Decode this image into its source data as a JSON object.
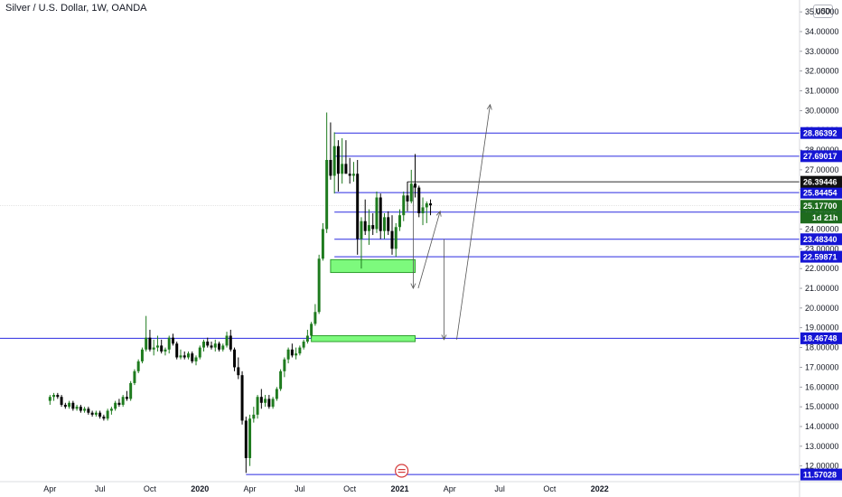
{
  "header": {
    "title": "Silver / U.S. Dollar, 1W, OANDA",
    "currency": "USD"
  },
  "colors": {
    "up": "#1e7b1e",
    "down": "#000000",
    "hline": "#2a2ae0",
    "zone_fill": "#7dfa7d",
    "zone_border": "#2e9e2e",
    "current_badge": "#111111",
    "price_badge": "#1e6b1e",
    "level_badge": "#1515d4"
  },
  "chart_data": {
    "type": "candlestick",
    "title": "Silver / U.S. Dollar, 1W, OANDA",
    "y_unit": "USD",
    "ylim": [
      11.3,
      35.6
    ],
    "y_ticks": [
      "12.00000",
      "13.00000",
      "14.00000",
      "15.00000",
      "16.00000",
      "17.00000",
      "18.00000",
      "19.00000",
      "20.00000",
      "21.00000",
      "22.00000",
      "23.00000",
      "24.00000",
      "25.00000",
      "26.00000",
      "27.00000",
      "28.00000",
      "29.00000",
      "30.00000",
      "31.00000",
      "32.00000",
      "33.00000",
      "34.00000",
      "35.00000"
    ],
    "x_ticks": [
      "Apr",
      "Jul",
      "Oct",
      "2020",
      "Apr",
      "Jul",
      "Oct",
      "2021",
      "Apr",
      "Jul",
      "Oct",
      "2022"
    ],
    "x_range_weeks": [
      -13,
      195
    ],
    "x_tick_weeks": [
      0,
      13,
      26,
      39,
      52,
      65,
      78,
      91,
      104,
      117,
      130,
      143
    ],
    "candles": [
      [
        15.3,
        15.6,
        15.1,
        15.5
      ],
      [
        15.5,
        15.7,
        15.3,
        15.6
      ],
      [
        15.6,
        15.7,
        15.4,
        15.5
      ],
      [
        15.5,
        15.6,
        15.0,
        15.1
      ],
      [
        15.1,
        15.2,
        14.9,
        15.0
      ],
      [
        15.0,
        15.3,
        14.9,
        15.2
      ],
      [
        15.2,
        15.3,
        14.8,
        14.9
      ],
      [
        14.9,
        15.1,
        14.8,
        15.0
      ],
      [
        15.0,
        15.1,
        14.7,
        14.8
      ],
      [
        14.8,
        15.0,
        14.7,
        14.9
      ],
      [
        14.9,
        15.0,
        14.6,
        14.7
      ],
      [
        14.7,
        14.8,
        14.5,
        14.6
      ],
      [
        14.6,
        14.8,
        14.5,
        14.7
      ],
      [
        14.7,
        14.8,
        14.4,
        14.5
      ],
      [
        14.5,
        14.6,
        14.3,
        14.4
      ],
      [
        14.4,
        14.9,
        14.3,
        14.8
      ],
      [
        14.8,
        15.0,
        14.6,
        14.9
      ],
      [
        14.9,
        15.3,
        14.8,
        15.2
      ],
      [
        15.2,
        15.4,
        15.0,
        15.1
      ],
      [
        15.1,
        15.6,
        15.0,
        15.5
      ],
      [
        15.5,
        15.8,
        15.3,
        15.4
      ],
      [
        15.4,
        16.3,
        15.3,
        16.2
      ],
      [
        16.2,
        16.9,
        16.1,
        16.8
      ],
      [
        16.8,
        17.4,
        16.7,
        17.3
      ],
      [
        17.3,
        18.0,
        17.2,
        17.9
      ],
      [
        17.9,
        19.6,
        17.8,
        18.5
      ],
      [
        18.5,
        18.9,
        17.8,
        17.9
      ],
      [
        17.9,
        18.4,
        17.6,
        18.0
      ],
      [
        18.0,
        18.6,
        17.8,
        18.1
      ],
      [
        18.1,
        18.4,
        17.7,
        17.8
      ],
      [
        17.8,
        18.0,
        17.6,
        17.9
      ],
      [
        17.9,
        18.6,
        17.7,
        18.5
      ],
      [
        18.5,
        18.7,
        18.1,
        18.2
      ],
      [
        18.2,
        18.3,
        17.4,
        17.5
      ],
      [
        17.5,
        17.9,
        17.4,
        17.6
      ],
      [
        17.6,
        17.8,
        17.4,
        17.5
      ],
      [
        17.5,
        17.8,
        17.4,
        17.7
      ],
      [
        17.7,
        17.8,
        17.2,
        17.3
      ],
      [
        17.3,
        17.6,
        17.1,
        17.5
      ],
      [
        17.5,
        18.1,
        17.4,
        18.0
      ],
      [
        18.0,
        18.4,
        17.8,
        18.3
      ],
      [
        18.3,
        18.5,
        18.0,
        18.1
      ],
      [
        18.1,
        18.3,
        17.9,
        18.0
      ],
      [
        18.0,
        18.4,
        17.8,
        18.2
      ],
      [
        18.2,
        18.3,
        17.8,
        17.9
      ],
      [
        17.9,
        18.2,
        17.8,
        18.1
      ],
      [
        18.1,
        18.8,
        18.0,
        18.6
      ],
      [
        18.6,
        18.9,
        17.8,
        17.9
      ],
      [
        17.9,
        18.0,
        16.8,
        17.0
      ],
      [
        17.0,
        17.5,
        16.4,
        16.6
      ],
      [
        16.6,
        16.8,
        14.1,
        14.3
      ],
      [
        14.3,
        14.5,
        11.65,
        12.4
      ],
      [
        12.4,
        14.6,
        12.0,
        14.4
      ],
      [
        14.4,
        15.0,
        14.2,
        14.6
      ],
      [
        14.6,
        15.6,
        14.4,
        15.5
      ],
      [
        15.5,
        15.9,
        14.9,
        15.2
      ],
      [
        15.2,
        15.6,
        15.0,
        15.4
      ],
      [
        15.4,
        15.6,
        14.9,
        15.0
      ],
      [
        15.0,
        15.5,
        14.9,
        15.4
      ],
      [
        15.4,
        16.0,
        15.3,
        15.9
      ],
      [
        15.9,
        16.9,
        15.8,
        16.8
      ],
      [
        16.8,
        17.5,
        16.5,
        17.4
      ],
      [
        17.4,
        18.0,
        17.2,
        17.9
      ],
      [
        17.9,
        18.2,
        17.5,
        17.6
      ],
      [
        17.6,
        18.0,
        17.4,
        17.7
      ],
      [
        17.7,
        18.1,
        17.6,
        18.0
      ],
      [
        18.0,
        18.4,
        17.9,
        18.3
      ],
      [
        18.3,
        18.9,
        18.2,
        18.6
      ],
      [
        18.6,
        19.3,
        18.5,
        19.2
      ],
      [
        19.2,
        20.2,
        19.1,
        19.8
      ],
      [
        19.8,
        22.7,
        19.7,
        22.5
      ],
      [
        22.5,
        24.3,
        22.4,
        24.0
      ],
      [
        24.0,
        29.9,
        23.8,
        27.5
      ],
      [
        27.5,
        29.4,
        26.5,
        26.7
      ],
      [
        26.7,
        28.9,
        25.8,
        28.2
      ],
      [
        28.2,
        28.5,
        25.9,
        26.8
      ],
      [
        26.8,
        28.6,
        26.3,
        27.3
      ],
      [
        27.3,
        28.5,
        26.8,
        26.8
      ],
      [
        26.8,
        27.6,
        26.3,
        26.7
      ],
      [
        26.7,
        27.4,
        26.4,
        26.8
      ],
      [
        26.8,
        27.5,
        22.7,
        23.5
      ],
      [
        23.5,
        24.6,
        22.0,
        24.4
      ],
      [
        24.4,
        25.5,
        23.7,
        23.9
      ],
      [
        23.9,
        25.0,
        23.2,
        24.2
      ],
      [
        24.2,
        24.8,
        23.7,
        24.0
      ],
      [
        24.0,
        25.9,
        23.8,
        25.6
      ],
      [
        25.6,
        25.8,
        23.5,
        23.9
      ],
      [
        23.9,
        24.8,
        23.5,
        24.6
      ],
      [
        24.6,
        24.9,
        23.7,
        23.9
      ],
      [
        23.9,
        24.7,
        22.7,
        23.0
      ],
      [
        23.0,
        24.3,
        22.6,
        24.1
      ],
      [
        24.1,
        25.0,
        23.9,
        24.7
      ],
      [
        24.7,
        25.9,
        24.4,
        25.7
      ],
      [
        25.7,
        26.4,
        24.9,
        25.4
      ],
      [
        25.4,
        27.0,
        25.3,
        26.3
      ],
      [
        26.3,
        27.8,
        25.6,
        26.1
      ],
      [
        26.1,
        26.2,
        24.6,
        24.8
      ],
      [
        24.8,
        25.6,
        24.2,
        25.1
      ],
      [
        25.1,
        25.4,
        24.3,
        25.3
      ],
      [
        25.3,
        25.5,
        24.7,
        25.2
      ]
    ],
    "current_price": 26.39446,
    "levels": [
      {
        "value": 28.86392,
        "label": "28.86392"
      },
      {
        "value": 27.69017,
        "label": "27.69017"
      },
      {
        "value": 25.84454,
        "label": "25.84454"
      },
      {
        "value": 24.85906,
        "label": "24.85906"
      },
      {
        "value": 23.4834,
        "label": "23.48340"
      },
      {
        "value": 22.59871,
        "label": "22.59871"
      },
      {
        "value": 18.46748,
        "label": "18.46748"
      },
      {
        "value": 11.57028,
        "label": "11.57028"
      }
    ],
    "zones": [
      {
        "from_week": 68,
        "to_week": 95,
        "low": 18.3,
        "high": 18.6
      },
      {
        "from_week": 73,
        "to_week": 95,
        "low": 21.8,
        "high": 22.45
      }
    ],
    "price_badge": {
      "value": "25.17700",
      "countdown": "1d 21h"
    },
    "current_badge": "26.39446"
  }
}
